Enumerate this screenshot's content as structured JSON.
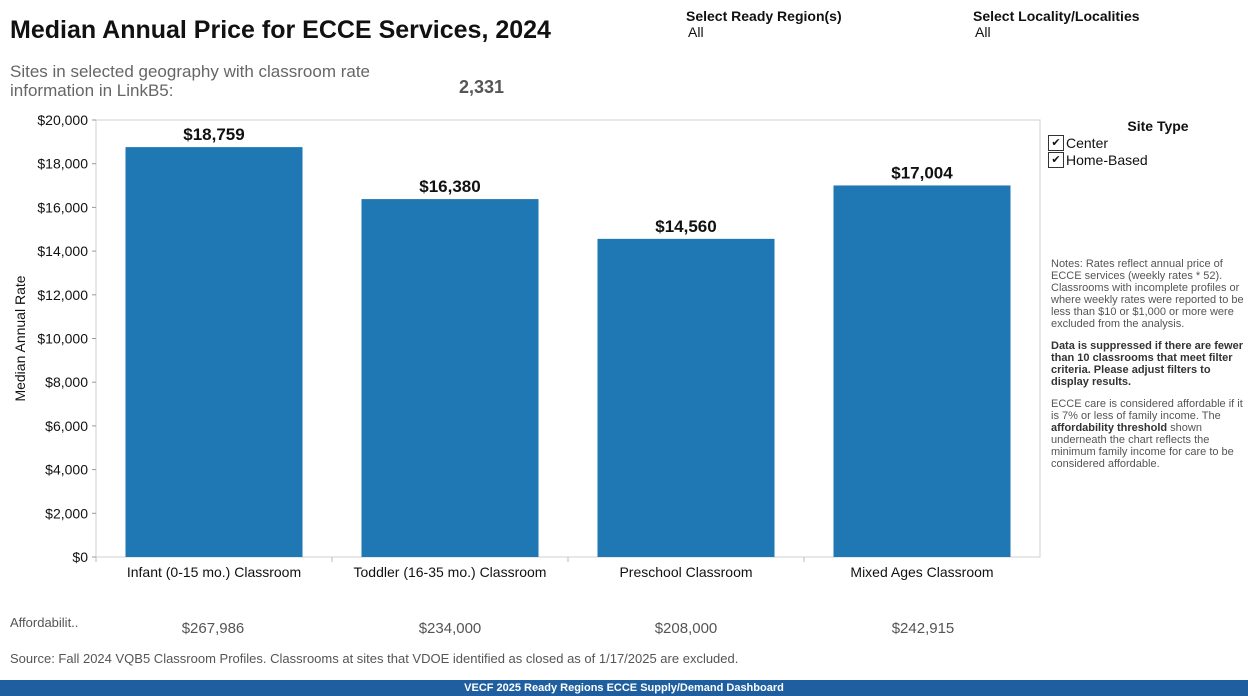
{
  "title": "Median Annual Price for ECCE Services, 2024",
  "filters": {
    "region": {
      "label": "Select Ready Region(s)",
      "value": "All"
    },
    "locality": {
      "label": "Select Locality/Localities",
      "value": "All"
    }
  },
  "sites": {
    "label": "Sites in selected geography with classroom rate information in LinkB5:",
    "count": "2,331"
  },
  "legend": {
    "title": "Site Type",
    "items": [
      {
        "label": "Center",
        "checked": true
      },
      {
        "label": "Home-Based",
        "checked": true
      }
    ]
  },
  "notes": {
    "p1": "Notes: Rates reflect annual price of ECCE services (weekly rates * 52). Classrooms with incomplete profiles or where weekly rates were reported to be less than $10 or $1,000 or more were excluded from the analysis.",
    "p2": "Data is suppressed if there are fewer than 10 classrooms that meet filter criteria. Please adjust filters to display results.",
    "p3_a": "ECCE care is considered affordable if it is 7% or less of family income. The ",
    "p3_b": "affordability threshold",
    "p3_c": " shown underneath the chart reflects the minimum family income for care to be considered affordable."
  },
  "affordability": {
    "label": "Affordabilit..",
    "values": [
      "$267,986",
      "$234,000",
      "$208,000",
      "$242,915"
    ]
  },
  "source": "Source: Fall 2024 VQB5 Classroom Profiles. Classrooms at sites that VDOE identified as closed as of 1/17/2025 are excluded.",
  "footer": "VECF 2025 Ready Regions ECCE Supply/Demand Dashboard",
  "chart_data": {
    "type": "bar",
    "categories": [
      "Infant (0-15 mo.) Classroom",
      "Toddler (16-35 mo.) Classroom",
      "Preschool Classroom",
      "Mixed Ages Classroom"
    ],
    "values": [
      18759,
      16380,
      14560,
      17004
    ],
    "data_labels": [
      "$18,759",
      "$16,380",
      "$14,560",
      "$17,004"
    ],
    "ylabel": "Median Annual Rate",
    "ylim": [
      0,
      20000
    ],
    "yticks": [
      0,
      2000,
      4000,
      6000,
      8000,
      10000,
      12000,
      14000,
      16000,
      18000,
      20000
    ],
    "ytick_labels": [
      "$0",
      "$2,000",
      "$4,000",
      "$6,000",
      "$8,000",
      "$10,000",
      "$12,000",
      "$14,000",
      "$16,000",
      "$18,000",
      "$20,000"
    ],
    "bar_color": "#1f77b4",
    "grid": false
  }
}
